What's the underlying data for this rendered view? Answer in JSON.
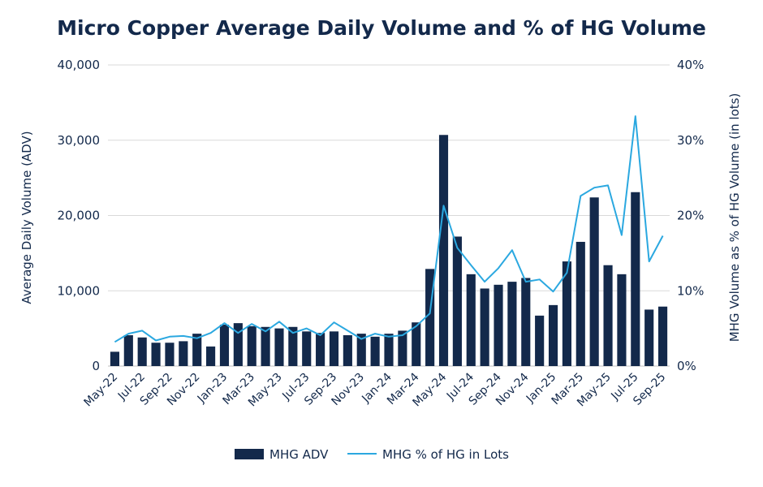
{
  "chart_data": {
    "type": "bar",
    "title": "Micro Copper Average Daily Volume and % of HG Volume",
    "ylabel": "Average Daily Volume (ADV)",
    "y2label": "MHG Volume as % of HG Volume (in lots)",
    "ylim": [
      0,
      40000
    ],
    "y2lim": [
      0,
      40
    ],
    "y_ticks": [
      "0",
      "10,000",
      "20,000",
      "30,000",
      "40,000"
    ],
    "y2_ticks": [
      "0%",
      "10%",
      "20%",
      "30%",
      "40%"
    ],
    "grid": true,
    "legend_position": "bottom",
    "categories": [
      "May-22",
      "Jun-22",
      "Jul-22",
      "Aug-22",
      "Sep-22",
      "Oct-22",
      "Nov-22",
      "Dec-22",
      "Jan-23",
      "Feb-23",
      "Mar-23",
      "Apr-23",
      "May-23",
      "Jun-23",
      "Jul-23",
      "Aug-23",
      "Sep-23",
      "Oct-23",
      "Nov-23",
      "Dec-23",
      "Jan-24",
      "Feb-24",
      "Mar-24",
      "Apr-24",
      "May-24",
      "Jun-24",
      "Jul-24",
      "Aug-24",
      "Sep-24",
      "Oct-24",
      "Nov-24",
      "Dec-24",
      "Jan-25",
      "Feb-25",
      "Mar-25",
      "Apr-25",
      "May-25",
      "Jun-25",
      "Jul-25",
      "Aug-25",
      "Sep-25"
    ],
    "x_tick_labels": [
      "May-22",
      "Jul-22",
      "Sep-22",
      "Nov-22",
      "Jan-23",
      "Mar-23",
      "May-23",
      "Jul-23",
      "Sep-23",
      "Nov-23",
      "Jan-24",
      "Mar-24",
      "May-24",
      "Jul-24",
      "Sep-24",
      "Nov-24",
      "Jan-25",
      "Mar-25",
      "May-25",
      "Jul-25",
      "Sep-25"
    ],
    "series": [
      {
        "name": "MHG ADV",
        "type": "bar",
        "axis": "left",
        "color": "#13294b",
        "values": [
          1900,
          4100,
          3800,
          3100,
          3100,
          3300,
          4300,
          2600,
          5500,
          5700,
          5300,
          5200,
          5000,
          5200,
          4600,
          4400,
          4600,
          4100,
          4300,
          3900,
          4300,
          4700,
          5800,
          12900,
          30700,
          17200,
          12200,
          10300,
          10800,
          11200,
          11700,
          6700,
          8100,
          13900,
          16500,
          22400,
          13400,
          12200,
          23100,
          7500,
          7900
        ]
      },
      {
        "name": "MHG % of HG in Lots",
        "type": "line",
        "axis": "right",
        "color": "#2ba8e0",
        "values": [
          3.2,
          4.3,
          4.7,
          3.4,
          3.9,
          4.0,
          3.7,
          4.4,
          5.7,
          4.4,
          5.6,
          4.6,
          5.9,
          4.4,
          5.0,
          4.1,
          5.8,
          4.7,
          3.6,
          4.3,
          3.9,
          4.1,
          5.3,
          7.0,
          21.3,
          15.7,
          13.4,
          11.2,
          13.0,
          15.4,
          11.2,
          11.5,
          9.9,
          12.4,
          22.6,
          23.7,
          24.0,
          17.4,
          33.2,
          13.9,
          17.3
        ]
      }
    ]
  }
}
